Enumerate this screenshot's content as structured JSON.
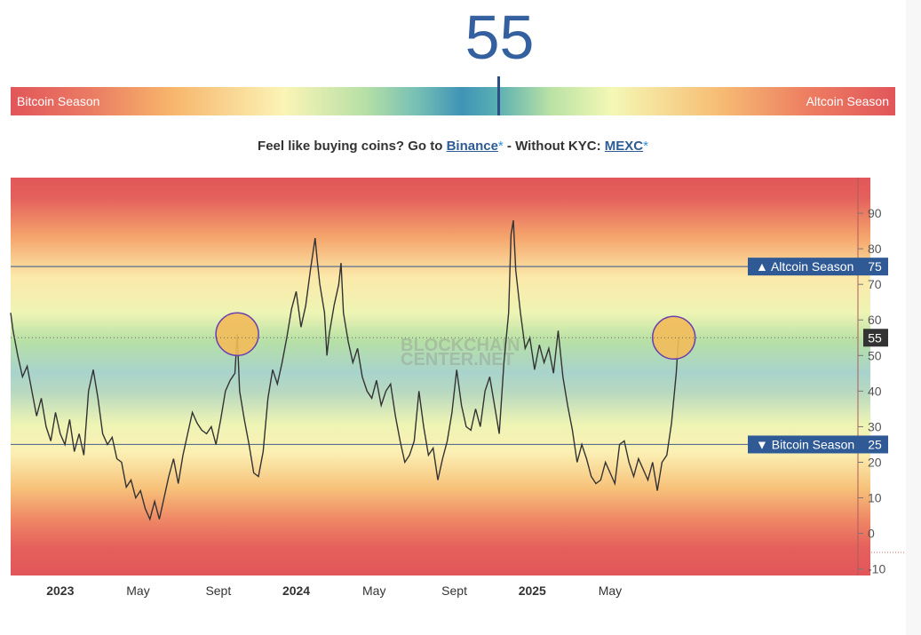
{
  "index": {
    "value": "55"
  },
  "season_bar": {
    "left_label": "Bitcoin Season",
    "right_label": "Altcoin Season",
    "current_value": 55
  },
  "promo": {
    "text_before": "Feel like buying coins? Go to",
    "link1": "Binance",
    "star": "*",
    "text_middle": " - Without KYC: ",
    "link2": "MEXC"
  },
  "chart_data": {
    "type": "line",
    "watermark": [
      "BLOCKCHAIN",
      "CENTER.NET"
    ],
    "y_ticks": [
      90,
      80,
      70,
      60,
      50,
      40,
      30,
      20,
      10,
      0,
      -10
    ],
    "ylim": [
      -10,
      95
    ],
    "x_labels": [
      {
        "label": "2023",
        "x": 2023.0,
        "bold": true
      },
      {
        "label": "May",
        "x": 2023.33,
        "bold": false
      },
      {
        "label": "Sept",
        "x": 2023.67,
        "bold": false
      },
      {
        "label": "2024",
        "x": 2024.0,
        "bold": true
      },
      {
        "label": "May",
        "x": 2024.33,
        "bold": false
      },
      {
        "label": "Sept",
        "x": 2024.67,
        "bold": false
      },
      {
        "label": "2025",
        "x": 2025.0,
        "bold": true
      },
      {
        "label": "May",
        "x": 2025.33,
        "bold": false
      }
    ],
    "xlim": [
      2022.79,
      2026.38
    ],
    "thresholds": [
      {
        "label": "▲ Altcoin Season",
        "value": 75,
        "value_label": "75"
      },
      {
        "label": "▼ Bitcoin Season",
        "value": 25,
        "value_label": "25"
      }
    ],
    "current": {
      "value": 55,
      "label": "55"
    },
    "highlights": [
      {
        "x": 2023.75,
        "y": 56
      },
      {
        "x": 2025.6,
        "y": 55
      }
    ],
    "colors": {
      "line": "#333333",
      "threshold": "#5a6f8e",
      "label_bg": "#2f5a96",
      "current_bg": "#333333",
      "highlight_fill": "#f2bb5a",
      "highlight_stroke": "#6a3fb0"
    },
    "series": [
      {
        "points": [
          [
            2022.79,
            62
          ],
          [
            2022.8,
            57
          ],
          [
            2022.82,
            50
          ],
          [
            2022.84,
            44
          ],
          [
            2022.86,
            47
          ],
          [
            2022.88,
            40
          ],
          [
            2022.9,
            33
          ],
          [
            2022.92,
            38
          ],
          [
            2022.94,
            30
          ],
          [
            2022.96,
            26
          ],
          [
            2022.98,
            34
          ],
          [
            2023.0,
            28
          ],
          [
            2023.02,
            25
          ],
          [
            2023.04,
            32
          ],
          [
            2023.06,
            23
          ],
          [
            2023.08,
            28
          ],
          [
            2023.1,
            22
          ],
          [
            2023.12,
            40
          ],
          [
            2023.14,
            46
          ],
          [
            2023.16,
            38
          ],
          [
            2023.18,
            28
          ],
          [
            2023.2,
            25
          ],
          [
            2023.22,
            27
          ],
          [
            2023.24,
            21
          ],
          [
            2023.26,
            20
          ],
          [
            2023.28,
            13
          ],
          [
            2023.3,
            15
          ],
          [
            2023.32,
            10
          ],
          [
            2023.34,
            12
          ],
          [
            2023.36,
            7
          ],
          [
            2023.38,
            4
          ],
          [
            2023.4,
            9
          ],
          [
            2023.42,
            4
          ],
          [
            2023.44,
            10
          ],
          [
            2023.46,
            16
          ],
          [
            2023.48,
            21
          ],
          [
            2023.5,
            14
          ],
          [
            2023.52,
            22
          ],
          [
            2023.54,
            28
          ],
          [
            2023.56,
            34
          ],
          [
            2023.58,
            31
          ],
          [
            2023.6,
            29
          ],
          [
            2023.62,
            28
          ],
          [
            2023.64,
            30
          ],
          [
            2023.66,
            25
          ],
          [
            2023.68,
            32
          ],
          [
            2023.7,
            40
          ],
          [
            2023.72,
            43
          ],
          [
            2023.74,
            45
          ],
          [
            2023.75,
            56
          ],
          [
            2023.76,
            40
          ],
          [
            2023.78,
            32
          ],
          [
            2023.8,
            25
          ],
          [
            2023.82,
            17
          ],
          [
            2023.84,
            16
          ],
          [
            2023.86,
            23
          ],
          [
            2023.88,
            38
          ],
          [
            2023.9,
            46
          ],
          [
            2023.92,
            42
          ],
          [
            2023.94,
            48
          ],
          [
            2023.96,
            55
          ],
          [
            2023.98,
            63
          ],
          [
            2024.0,
            68
          ],
          [
            2024.02,
            58
          ],
          [
            2024.04,
            64
          ],
          [
            2024.06,
            74
          ],
          [
            2024.08,
            83
          ],
          [
            2024.09,
            76
          ],
          [
            2024.1,
            70
          ],
          [
            2024.12,
            62
          ],
          [
            2024.13,
            50
          ],
          [
            2024.14,
            56
          ],
          [
            2024.16,
            64
          ],
          [
            2024.18,
            70
          ],
          [
            2024.19,
            76
          ],
          [
            2024.2,
            62
          ],
          [
            2024.22,
            54
          ],
          [
            2024.24,
            48
          ],
          [
            2024.26,
            52
          ],
          [
            2024.28,
            44
          ],
          [
            2024.3,
            40
          ],
          [
            2024.32,
            38
          ],
          [
            2024.34,
            43
          ],
          [
            2024.36,
            36
          ],
          [
            2024.38,
            40
          ],
          [
            2024.4,
            42
          ],
          [
            2024.42,
            33
          ],
          [
            2024.44,
            26
          ],
          [
            2024.46,
            20
          ],
          [
            2024.48,
            22
          ],
          [
            2024.5,
            26
          ],
          [
            2024.52,
            40
          ],
          [
            2024.54,
            30
          ],
          [
            2024.56,
            22
          ],
          [
            2024.58,
            24
          ],
          [
            2024.6,
            15
          ],
          [
            2024.62,
            21
          ],
          [
            2024.64,
            26
          ],
          [
            2024.66,
            34
          ],
          [
            2024.68,
            46
          ],
          [
            2024.7,
            36
          ],
          [
            2024.72,
            30
          ],
          [
            2024.74,
            29
          ],
          [
            2024.76,
            35
          ],
          [
            2024.78,
            30
          ],
          [
            2024.8,
            40
          ],
          [
            2024.82,
            44
          ],
          [
            2024.84,
            36
          ],
          [
            2024.86,
            28
          ],
          [
            2024.88,
            48
          ],
          [
            2024.9,
            62
          ],
          [
            2024.91,
            84
          ],
          [
            2024.92,
            88
          ],
          [
            2024.93,
            74
          ],
          [
            2024.95,
            62
          ],
          [
            2024.97,
            52
          ],
          [
            2024.99,
            55
          ],
          [
            2025.01,
            46
          ],
          [
            2025.03,
            53
          ],
          [
            2025.05,
            48
          ],
          [
            2025.07,
            52
          ],
          [
            2025.09,
            45
          ],
          [
            2025.11,
            57
          ],
          [
            2025.13,
            44
          ],
          [
            2025.15,
            36
          ],
          [
            2025.17,
            29
          ],
          [
            2025.19,
            20
          ],
          [
            2025.21,
            25
          ],
          [
            2025.23,
            21
          ],
          [
            2025.25,
            16
          ],
          [
            2025.27,
            14
          ],
          [
            2025.29,
            15
          ],
          [
            2025.31,
            20
          ],
          [
            2025.33,
            17
          ],
          [
            2025.35,
            14
          ],
          [
            2025.37,
            25
          ],
          [
            2025.39,
            26
          ],
          [
            2025.41,
            20
          ],
          [
            2025.43,
            16
          ],
          [
            2025.45,
            21
          ],
          [
            2025.47,
            18
          ],
          [
            2025.49,
            15
          ],
          [
            2025.51,
            20
          ],
          [
            2025.53,
            12
          ],
          [
            2025.55,
            20
          ],
          [
            2025.57,
            22
          ],
          [
            2025.59,
            31
          ],
          [
            2025.61,
            45
          ],
          [
            2025.62,
            55
          ]
        ]
      }
    ]
  }
}
